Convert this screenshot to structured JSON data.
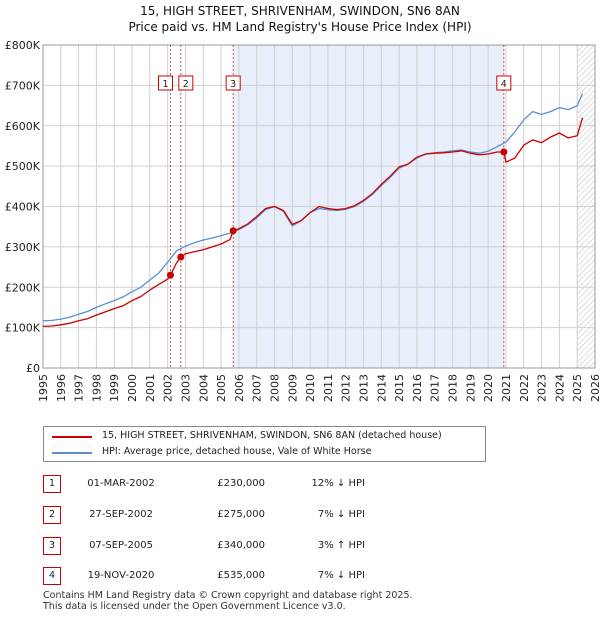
{
  "chart_data": {
    "type": "line",
    "title": "15, HIGH STREET, SHRIVENHAM, SWINDON, SN6 8AN",
    "subtitle": "Price paid vs. HM Land Registry's House Price Index (HPI)",
    "xlabel": "",
    "ylabel": "",
    "xlim": [
      1995,
      2026
    ],
    "ylim": [
      0,
      800000
    ],
    "y_ticks": [
      {
        "value": 0,
        "label": "£0"
      },
      {
        "value": 100000,
        "label": "£100K"
      },
      {
        "value": 200000,
        "label": "£200K"
      },
      {
        "value": 300000,
        "label": "£300K"
      },
      {
        "value": 400000,
        "label": "£400K"
      },
      {
        "value": 500000,
        "label": "£500K"
      },
      {
        "value": 600000,
        "label": "£600K"
      },
      {
        "value": 700000,
        "label": "£700K"
      },
      {
        "value": 800000,
        "label": "£800K"
      }
    ],
    "x_ticks": [
      "1995",
      "1996",
      "1997",
      "1998",
      "1999",
      "2000",
      "2001",
      "2002",
      "2003",
      "2004",
      "2005",
      "2006",
      "2007",
      "2008",
      "2009",
      "2010",
      "2011",
      "2012",
      "2013",
      "2014",
      "2015",
      "2016",
      "2017",
      "2018",
      "2019",
      "2020",
      "2021",
      "2022",
      "2023",
      "2024",
      "2025",
      "2026"
    ],
    "grid": true,
    "shaded_periods": [
      [
        2005.68,
        2020.88
      ]
    ],
    "hatched_period": [
      2025.0,
      2026.0
    ],
    "series": [
      {
        "name": "15, HIGH STREET, SHRIVENHAM, SWINDON, SN6 8AN (detached house)",
        "color": "#cc0000",
        "x": [
          1995.0,
          1995.5,
          1996.0,
          1996.5,
          1997.0,
          1997.5,
          1998.0,
          1998.5,
          1999.0,
          1999.5,
          2000.0,
          2000.5,
          2001.0,
          2001.5,
          2002.0,
          2002.16,
          2002.5,
          2002.74,
          2003.0,
          2003.5,
          2004.0,
          2004.5,
          2005.0,
          2005.5,
          2005.68,
          2006.0,
          2006.5,
          2007.0,
          2007.5,
          2008.0,
          2008.5,
          2009.0,
          2009.5,
          2010.0,
          2010.5,
          2011.0,
          2011.5,
          2012.0,
          2012.5,
          2013.0,
          2013.5,
          2014.0,
          2014.5,
          2015.0,
          2015.5,
          2016.0,
          2016.5,
          2017.0,
          2017.5,
          2018.0,
          2018.5,
          2019.0,
          2019.5,
          2020.0,
          2020.5,
          2020.88,
          2021.0,
          2021.5,
          2022.0,
          2022.5,
          2023.0,
          2023.5,
          2024.0,
          2024.5,
          2025.0,
          2025.3
        ],
        "values": [
          103000,
          104000,
          107000,
          111000,
          117000,
          122000,
          131000,
          139000,
          147000,
          154000,
          167000,
          177000,
          193000,
          207000,
          220000,
          230000,
          260000,
          275000,
          283000,
          288000,
          293000,
          300000,
          307000,
          318000,
          340000,
          345000,
          357000,
          375000,
          395000,
          400000,
          390000,
          356000,
          365000,
          385000,
          400000,
          395000,
          392000,
          395000,
          402000,
          415000,
          432000,
          455000,
          475000,
          498000,
          505000,
          522000,
          530000,
          532000,
          533000,
          535000,
          538000,
          532000,
          528000,
          530000,
          535000,
          535000,
          510000,
          520000,
          552000,
          565000,
          558000,
          572000,
          582000,
          570000,
          575000,
          620000
        ]
      },
      {
        "name": "HPI: Average price, detached house, Vale of White Horse",
        "color": "#5b8fd0",
        "x": [
          1995.0,
          1995.5,
          1996.0,
          1996.5,
          1997.0,
          1997.5,
          1998.0,
          1998.5,
          1999.0,
          1999.5,
          2000.0,
          2000.5,
          2001.0,
          2001.5,
          2002.0,
          2002.5,
          2003.0,
          2003.5,
          2004.0,
          2004.5,
          2005.0,
          2005.5,
          2006.0,
          2006.5,
          2007.0,
          2007.5,
          2008.0,
          2008.5,
          2009.0,
          2009.5,
          2010.0,
          2010.5,
          2011.0,
          2011.5,
          2012.0,
          2012.5,
          2013.0,
          2013.5,
          2014.0,
          2014.5,
          2015.0,
          2015.5,
          2016.0,
          2016.5,
          2017.0,
          2017.5,
          2018.0,
          2018.5,
          2019.0,
          2019.5,
          2020.0,
          2020.5,
          2021.0,
          2021.5,
          2022.0,
          2022.5,
          2023.0,
          2023.5,
          2024.0,
          2024.5,
          2025.0,
          2025.3
        ],
        "values": [
          117000,
          118000,
          121000,
          126000,
          133000,
          140000,
          150000,
          159000,
          167000,
          176000,
          189000,
          200000,
          218000,
          235000,
          262000,
          290000,
          302000,
          310000,
          317000,
          322000,
          328000,
          334000,
          343000,
          355000,
          372000,
          392000,
          400000,
          388000,
          352000,
          365000,
          385000,
          395000,
          392000,
          390000,
          393000,
          400000,
          413000,
          430000,
          452000,
          472000,
          495000,
          505000,
          520000,
          530000,
          533000,
          535000,
          538000,
          540000,
          535000,
          532000,
          537000,
          548000,
          560000,
          585000,
          615000,
          635000,
          628000,
          635000,
          645000,
          640000,
          650000,
          680000
        ]
      }
    ],
    "sales": [
      {
        "id": "1",
        "x": 2002.16,
        "value": 230000
      },
      {
        "id": "2",
        "x": 2002.74,
        "value": 275000
      },
      {
        "id": "3",
        "x": 2005.68,
        "value": 340000
      },
      {
        "id": "4",
        "x": 2020.88,
        "value": 535000
      }
    ]
  },
  "legend": {
    "property_label": "15, HIGH STREET, SHRIVENHAM, SWINDON, SN6 8AN (detached house)",
    "hpi_label": "HPI: Average price, detached house, Vale of White Horse"
  },
  "transactions": [
    {
      "id": "1",
      "date": "01-MAR-2002",
      "price": "£230,000",
      "hpi": "12% ↓ HPI"
    },
    {
      "id": "2",
      "date": "27-SEP-2002",
      "price": "£275,000",
      "hpi": "7% ↓ HPI"
    },
    {
      "id": "3",
      "date": "07-SEP-2005",
      "price": "£340,000",
      "hpi": "3% ↑ HPI"
    },
    {
      "id": "4",
      "date": "19-NOV-2020",
      "price": "£535,000",
      "hpi": "7% ↓ HPI"
    }
  ],
  "footer": {
    "line1": "Contains HM Land Registry data © Crown copyright and database right 2025.",
    "line2": "This data is licensed under the Open Government Licence v3.0."
  },
  "colors": {
    "property": "#cc0000",
    "hpi": "#5b8fd0",
    "shade": "#e8eefa",
    "grid": "#d0d0d0",
    "marker": "#cc0000"
  }
}
